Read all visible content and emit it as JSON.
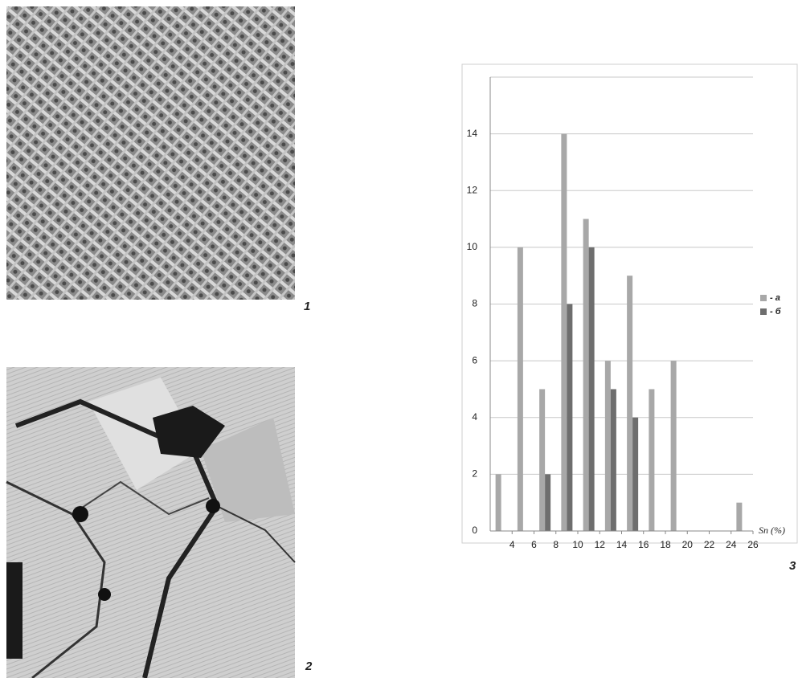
{
  "figure_labels": [
    "1",
    "2",
    "3"
  ],
  "chart_data": {
    "type": "histogram",
    "bins": [
      2,
      4,
      6,
      8,
      10,
      12,
      14,
      16,
      18,
      20,
      22,
      24,
      26
    ],
    "series": [
      {
        "name": "- a",
        "color": "#a8a8a8",
        "values": [
          2,
          10,
          5,
          14,
          11,
          6,
          9,
          5,
          6,
          0,
          0,
          1
        ]
      },
      {
        "name": "- б",
        "color": "#6e6e6e",
        "values": [
          0,
          0,
          2,
          8,
          10,
          5,
          4,
          0,
          0,
          0,
          0,
          0
        ]
      }
    ],
    "x_label": "Sn (%)",
    "xlim": [
      2,
      26
    ],
    "xticks": [
      4,
      6,
      8,
      10,
      12,
      14,
      16,
      18,
      20,
      22,
      24,
      26
    ],
    "ylim": [
      0,
      16
    ],
    "yticks": [
      0,
      2,
      4,
      6,
      8,
      10,
      12,
      14
    ],
    "grid": true
  }
}
